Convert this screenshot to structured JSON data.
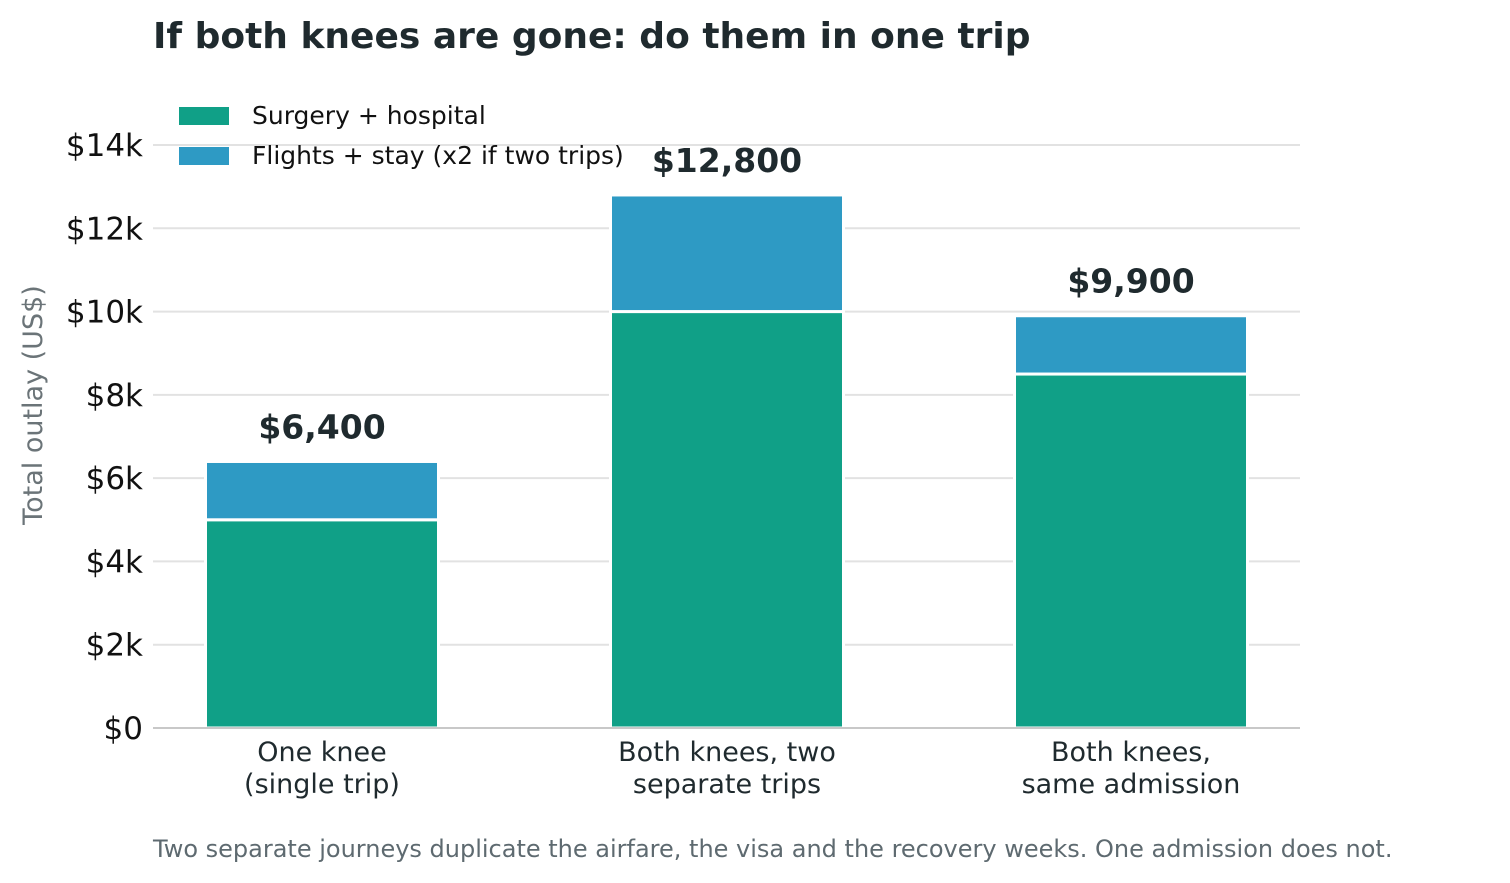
{
  "chart_data": {
    "type": "bar",
    "stacked": true,
    "title": "If both knees are gone: do them in one trip",
    "ylabel": "Total outlay (US$)",
    "xlabel": "",
    "ylim": [
      0,
      14000
    ],
    "yticks": [
      {
        "value": 0,
        "label": "$0"
      },
      {
        "value": 2000,
        "label": "$2k"
      },
      {
        "value": 4000,
        "label": "$4k"
      },
      {
        "value": 6000,
        "label": "$6k"
      },
      {
        "value": 8000,
        "label": "$8k"
      },
      {
        "value": 10000,
        "label": "$10k"
      },
      {
        "value": 12000,
        "label": "$12k"
      },
      {
        "value": 14000,
        "label": "$14k"
      }
    ],
    "grid": true,
    "legend_position": "top-left",
    "categories": [
      [
        "One knee",
        "(single trip)"
      ],
      [
        "Both knees, two",
        "separate trips"
      ],
      [
        "Both knees,",
        "same admission"
      ]
    ],
    "series": [
      {
        "name": "Surgery + hospital",
        "color": "#10a087",
        "values": [
          5000,
          10000,
          8500
        ]
      },
      {
        "name": "Flights + stay (x2 if two trips)",
        "color": "#2e9ac4",
        "values": [
          1400,
          2800,
          1400
        ]
      }
    ],
    "total_labels": [
      "$6,400",
      "$12,800",
      "$9,900"
    ],
    "caption": "Two separate journeys duplicate the airfare, the visa and the recovery weeks. One admission does not."
  }
}
